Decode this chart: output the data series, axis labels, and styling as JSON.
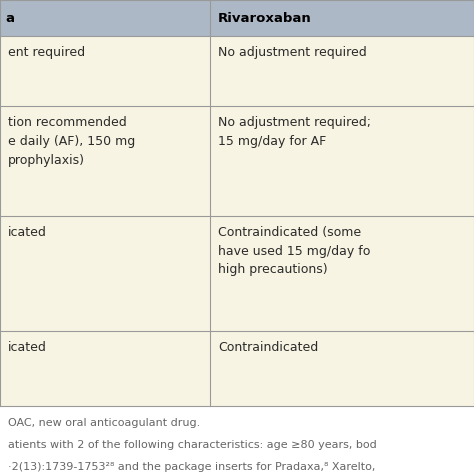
{
  "header_bg": "#adb8c6",
  "row_bg": "#f8f4e3",
  "footer_bg": "#ffffff",
  "line_color": "#999999",
  "header_text_color": "#000000",
  "body_text_color": "#2b2b2b",
  "footer_text_color": "#666666",
  "col2_header": "Rivaroxaban",
  "rows": [
    {
      "col1": "ent required",
      "col2": "No adjustment required"
    },
    {
      "col1": "tion recommended\ne daily (AF), 150 mg\nprophylaxis)",
      "col2": "No adjustment required;\n15 mg/day for AF"
    },
    {
      "col1": "icated",
      "col2": "Contraindicated (some\nhave used 15 mg/day fo\nhigh precautions)"
    },
    {
      "col1": "icated",
      "col2": "Contraindicated"
    }
  ],
  "footer_lines": [
    "OAC, new oral anticoagulant drug.",
    "atients with 2 of the following characteristics: age ≥80 years, bod",
    "·2(13):1739-1753²⁸ and the package inserts for Pradaxa,⁸ Xarelto,"
  ],
  "figsize": [
    4.74,
    4.74
  ],
  "dpi": 100
}
